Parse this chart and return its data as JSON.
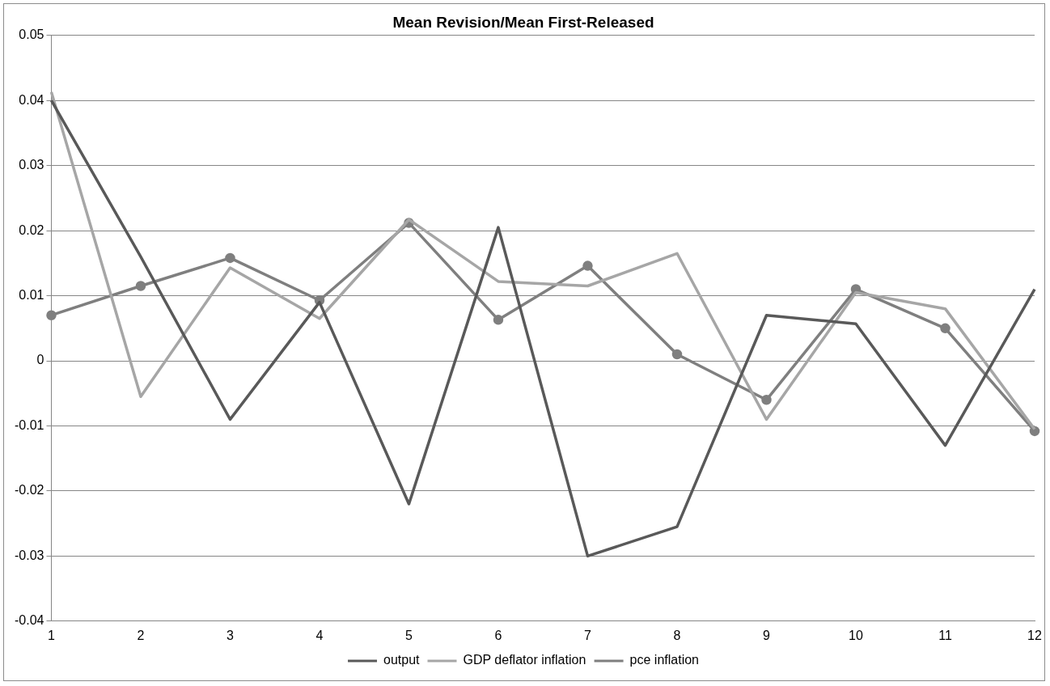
{
  "chart_data": {
    "type": "line",
    "title": "Mean Revision/Mean First-Released",
    "categories": [
      "1",
      "2",
      "3",
      "4",
      "5",
      "6",
      "7",
      "8",
      "9",
      "10",
      "11",
      "12"
    ],
    "series": [
      {
        "name": "output",
        "color": "#595959",
        "marker": "none",
        "values": [
          0.04,
          0.016,
          -0.009,
          0.009,
          -0.022,
          0.0205,
          -0.03,
          -0.0255,
          0.007,
          0.0057,
          -0.013,
          0.011
        ]
      },
      {
        "name": "GDP deflator inflation",
        "color": "#a6a6a6",
        "marker": "none",
        "values": [
          0.0413,
          -0.0055,
          0.0143,
          0.0065,
          0.0217,
          0.0122,
          0.0115,
          0.0165,
          -0.009,
          0.0105,
          0.008,
          -0.0105
        ]
      },
      {
        "name": "pce inflation",
        "color": "#7f7f7f",
        "marker": "circle",
        "values": [
          0.007,
          0.0115,
          0.0158,
          0.0093,
          0.0212,
          0.0063,
          0.0146,
          0.001,
          -0.006,
          0.011,
          0.005,
          -0.0108
        ]
      }
    ],
    "ylim": [
      -0.04,
      0.05
    ],
    "yticks": [
      -0.04,
      -0.03,
      -0.02,
      -0.01,
      0,
      0.01,
      0.02,
      0.03,
      0.04,
      0.05
    ],
    "grid": "y",
    "legend": "bottom",
    "line_style": "solid"
  }
}
